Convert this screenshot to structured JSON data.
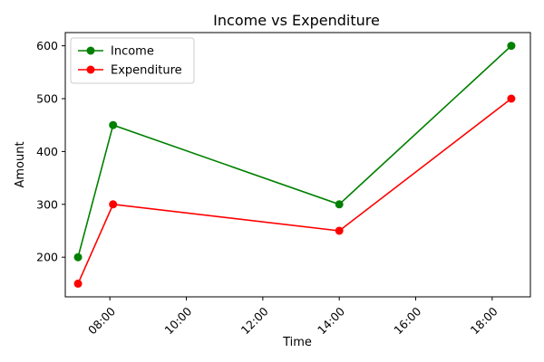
{
  "chart_data": {
    "type": "line",
    "title": "Income vs Expenditure",
    "xlabel": "Time",
    "ylabel": "Amount",
    "x": [
      "07:10",
      "08:05",
      "14:00",
      "18:30"
    ],
    "xlim": [
      "06:50",
      "19:00"
    ],
    "ylim": [
      125,
      625
    ],
    "x_ticks": [
      "08:00",
      "10:00",
      "12:00",
      "14:00",
      "16:00",
      "18:00"
    ],
    "y_ticks": [
      200,
      300,
      400,
      500,
      600
    ],
    "grid": false,
    "legend_position": "top-left",
    "series": [
      {
        "name": "Income",
        "color": "#008000",
        "values": [
          200,
          450,
          300,
          600
        ]
      },
      {
        "name": "Expenditure",
        "color": "#ff0000",
        "values": [
          150,
          300,
          250,
          500
        ]
      }
    ]
  }
}
